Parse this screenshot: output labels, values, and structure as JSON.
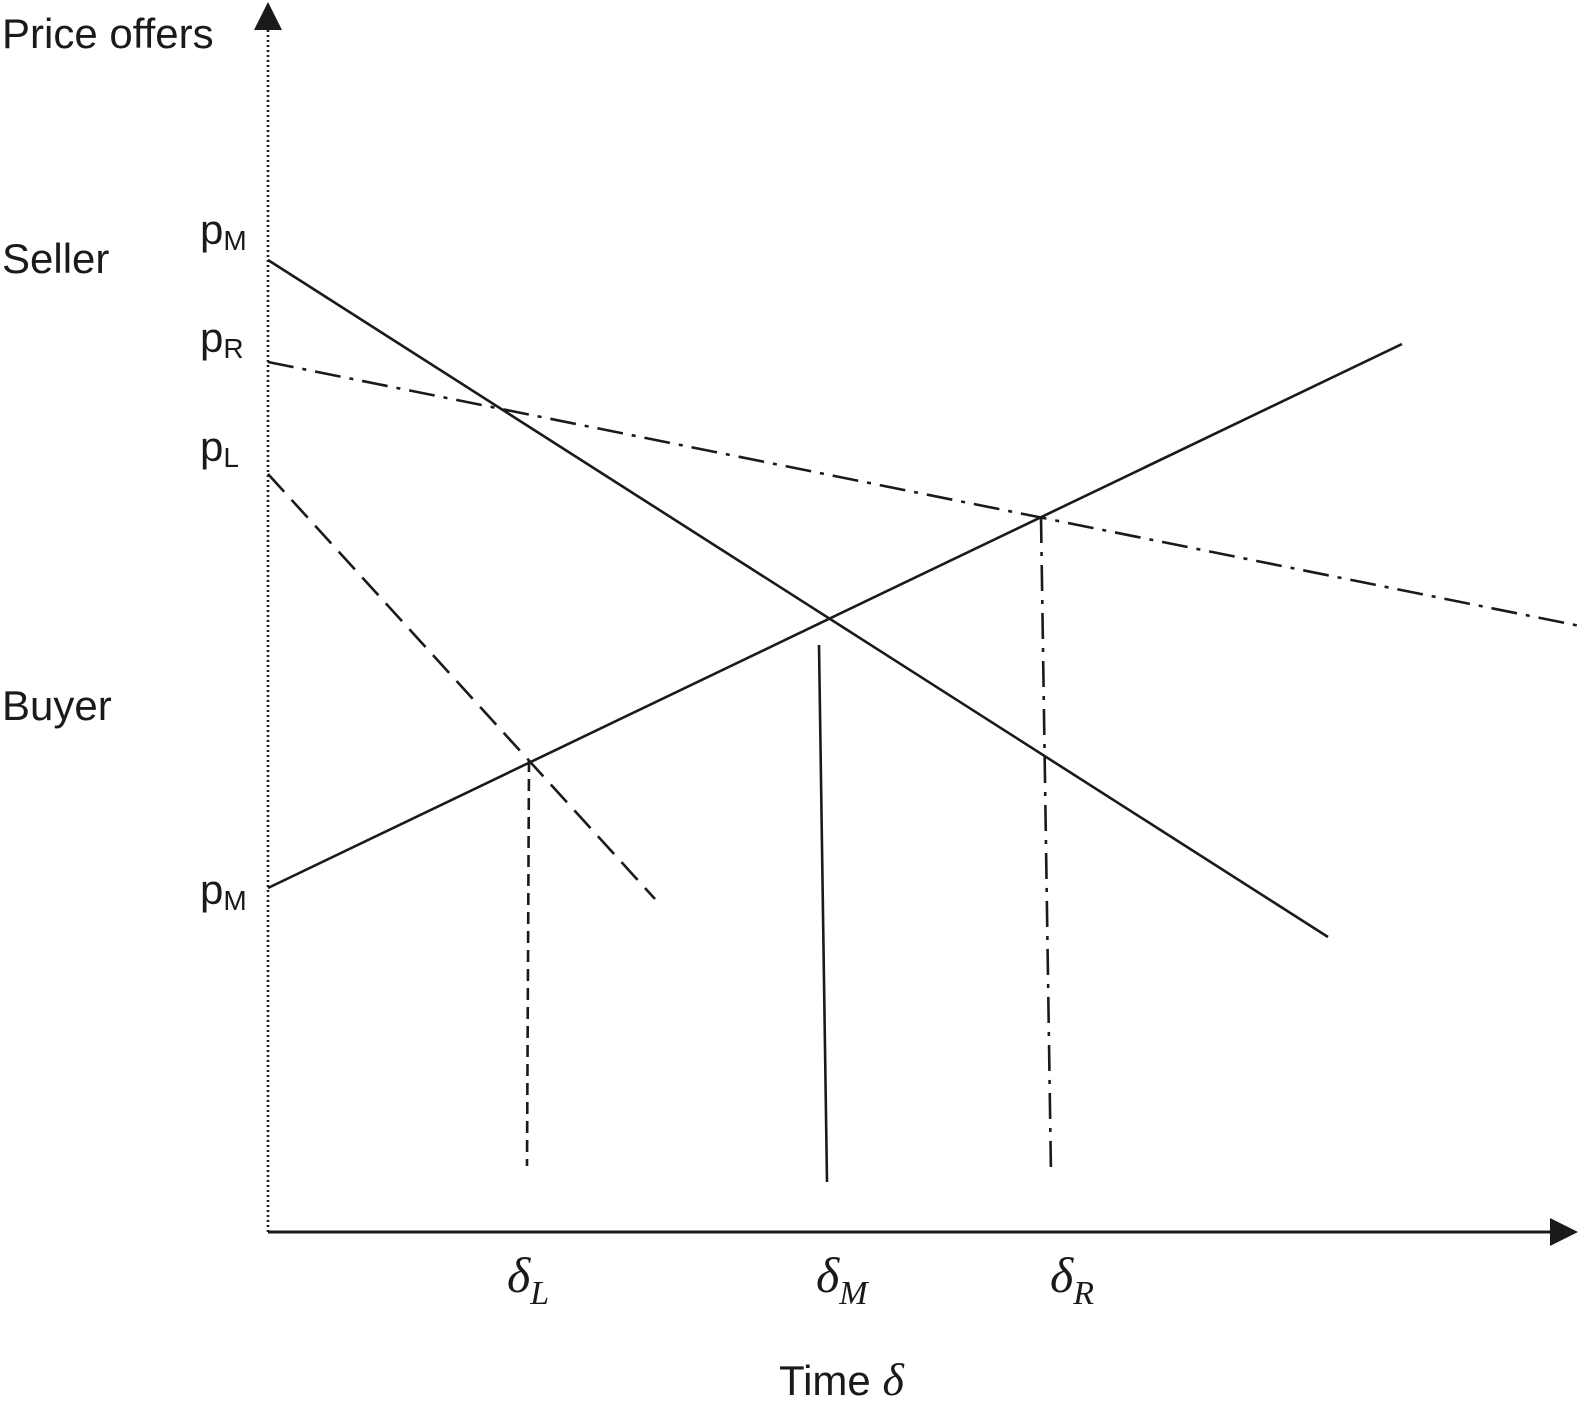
{
  "axes": {
    "y_label": "Price offers",
    "x_label_text": "Time ",
    "x_label_symbol": "δ"
  },
  "sides": {
    "seller": "Seller",
    "buyer": "Buyer"
  },
  "price_labels": [
    {
      "p": "p",
      "sub": "M"
    },
    {
      "p": "p",
      "sub": "R"
    },
    {
      "p": "p",
      "sub": "L"
    },
    {
      "p": "p",
      "sub": "M"
    }
  ],
  "delta_labels": [
    {
      "symbol": "δ",
      "sub": "L"
    },
    {
      "symbol": "δ",
      "sub": "M"
    },
    {
      "symbol": "δ",
      "sub": "R"
    }
  ]
}
